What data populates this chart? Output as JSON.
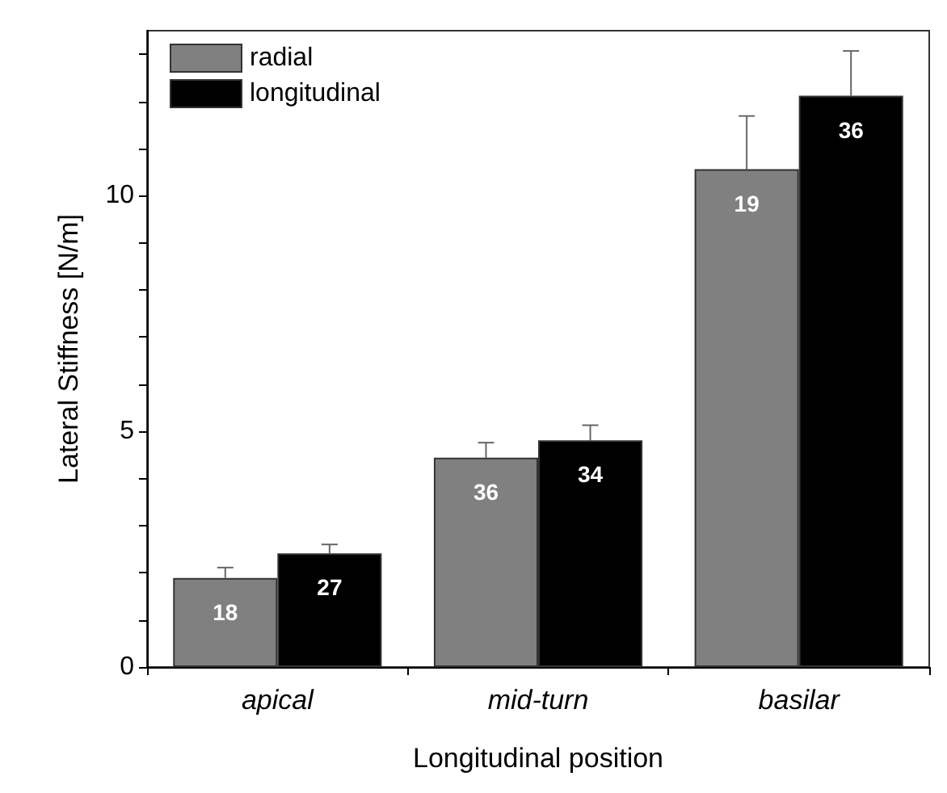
{
  "chart_data": {
    "type": "bar",
    "xlabel": "Longitudinal position",
    "ylabel": "Lateral Stiffness [N/m]",
    "categories": [
      "apical",
      "mid-turn",
      "basilar"
    ],
    "series": [
      {
        "name": "radial",
        "color": "#808080",
        "values": [
          1.89,
          4.44,
          10.56
        ],
        "errors": [
          [
            1.89,
            2.11
          ],
          [
            4.44,
            4.76
          ],
          [
            10.56,
            11.69
          ]
        ]
      },
      {
        "name": "longitudinal",
        "color": "#000000",
        "values": [
          2.41,
          4.81,
          12.12
        ],
        "errors": [
          [
            2.41,
            2.6
          ],
          [
            4.81,
            5.13
          ],
          [
            12.12,
            13.07
          ]
        ]
      }
    ],
    "annotations": [
      {
        "text": "18",
        "x": "apical",
        "y": 1.89
      },
      {
        "text": "27",
        "x": "apical",
        "y": 2.41
      },
      {
        "text": "36",
        "x": "mid-turn",
        "y": 4.44
      },
      {
        "text": "34",
        "x": "mid-turn",
        "y": 4.81
      },
      {
        "text": "19",
        "x": "basilar",
        "y": 10.56
      },
      {
        "text": "36",
        "x": "basilar",
        "y": 12.12
      }
    ],
    "ylim": [
      0,
      13.5
    ],
    "yticks": [
      0,
      {
        "value": 1,
        "label": null
      },
      {
        "value": 2,
        "label": null
      },
      {
        "value": 3,
        "label": null
      },
      {
        "value": 4,
        "label": null
      },
      5,
      {
        "value": 6,
        "label": null
      },
      {
        "value": 7,
        "label": null
      },
      {
        "value": 8,
        "label": null
      },
      {
        "value": 9,
        "label": null
      },
      10,
      {
        "value": 11,
        "label": null
      },
      {
        "value": 12,
        "label": null
      },
      {
        "value": 13,
        "label": null
      }
    ],
    "legend": "top left",
    "grid": false
  }
}
